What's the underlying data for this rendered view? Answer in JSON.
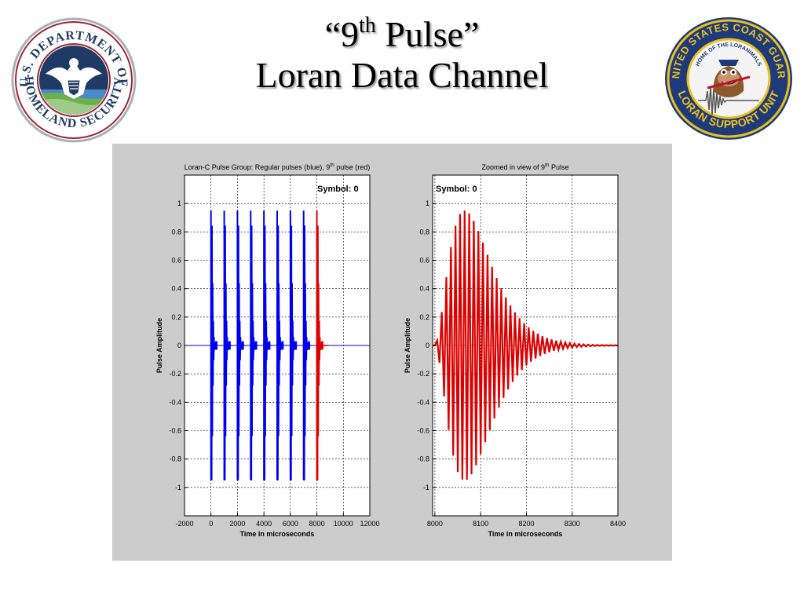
{
  "slide": {
    "title_prefix": "“9",
    "title_sup": "th",
    "title_suffix": " Pulse”",
    "title_line2": "Loran Data Channel"
  },
  "logos": {
    "left": {
      "icon": "dhs-seal-icon",
      "text_top": "U.S. DEPARTMENT OF",
      "text_bottom": "HOMELAND SECURITY"
    },
    "right": {
      "icon": "uscg-lsu-patch-icon",
      "text_top": "UNITED STATES COAST GUARD",
      "text_inner": "HOME OF THE LORANIMALS",
      "text_bottom": "LORAN SUPPORT UNIT"
    }
  },
  "colors": {
    "regular_pulse": "#0000ee",
    "ninth_pulse": "#dd0000",
    "panel_background": "#cccccc",
    "plot_background": "#ffffff"
  },
  "chart_data": [
    {
      "type": "line",
      "title_prefix": "Loran-C Pulse Group: Regular pulses (blue), 9",
      "title_sup": "th",
      "title_suffix": " pulse (red)",
      "xlabel": "Time in microseconds",
      "ylabel": "Pulse Amplitude",
      "xlim": [
        -2000,
        12000
      ],
      "ylim": [
        -1.2,
        1.2
      ],
      "xticks": [
        -2000,
        0,
        2000,
        4000,
        6000,
        8000,
        10000,
        12000
      ],
      "yticks": [
        -1,
        -0.8,
        -0.6,
        -0.4,
        -0.2,
        0,
        0.2,
        0.4,
        0.6,
        0.8,
        1
      ],
      "grid": true,
      "annotation": "Symbol: 0",
      "series": [
        {
          "color": "#0000ee",
          "pulse_starts": [
            0,
            1000,
            2000,
            3000,
            4000,
            5000,
            6000,
            7000
          ],
          "peak": 0.95
        },
        {
          "color": "#dd0000",
          "pulse_starts": [
            8000
          ],
          "peak": 0.95
        }
      ]
    },
    {
      "type": "line",
      "title_prefix": "Zoomed in view of 9",
      "title_sup": "th",
      "title_suffix": " Pulse",
      "xlabel": "Time in microseconds",
      "ylabel": "Pulse Amplitude",
      "xlim": [
        7995,
        8400
      ],
      "ylim": [
        -1.2,
        1.2
      ],
      "xticks": [
        8000,
        8100,
        8200,
        8300,
        8400
      ],
      "yticks": [
        -1,
        -0.8,
        -0.6,
        -0.4,
        -0.2,
        0,
        0.2,
        0.4,
        0.6,
        0.8,
        1
      ],
      "grid": true,
      "annotation": "Symbol: 0",
      "series": [
        {
          "color": "#dd0000",
          "pulse_start": 8000,
          "carrier_khz": 100,
          "peak": 0.95,
          "peak_time": 8065,
          "decay_to_zero": 8250
        }
      ]
    }
  ]
}
